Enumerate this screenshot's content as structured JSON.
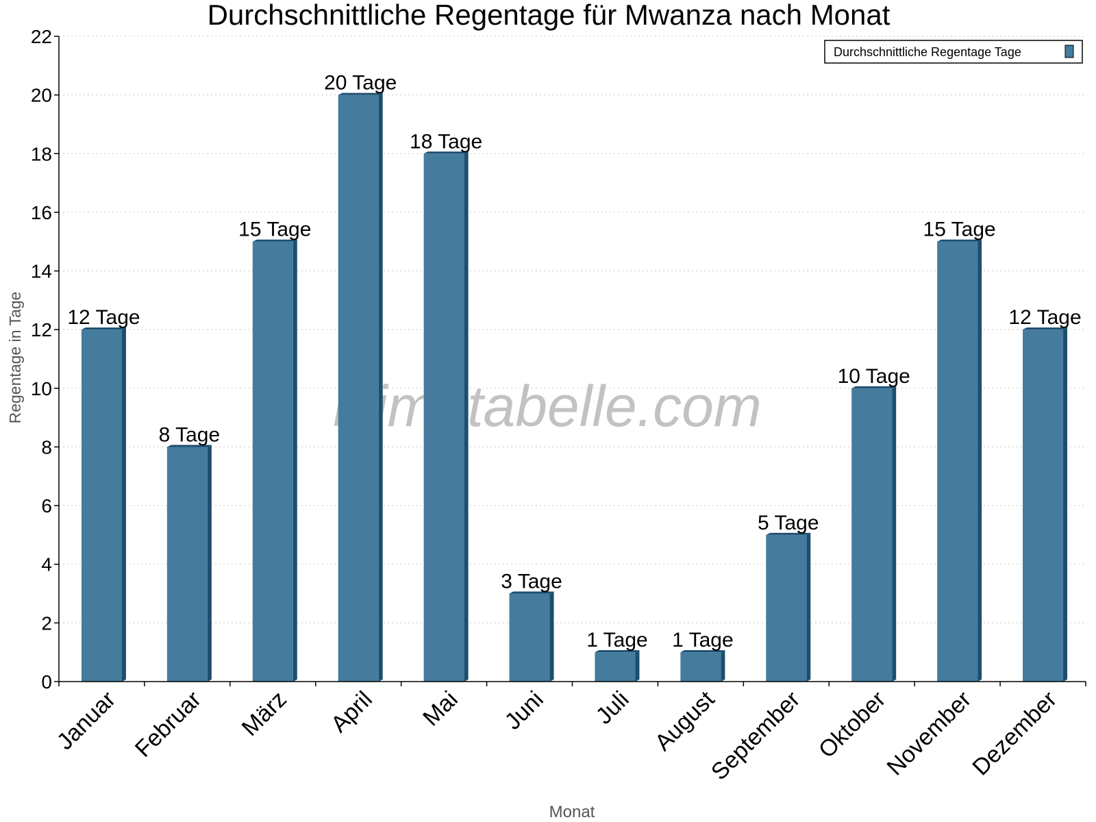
{
  "chart_data": {
    "type": "bar",
    "title": "Durchschnittliche Regentage für Mwanza nach Monat",
    "xlabel": "Monat",
    "ylabel": "Regentage in Tage",
    "categories": [
      "Januar",
      "Februar",
      "März",
      "April",
      "Mai",
      "Juni",
      "Juli",
      "August",
      "September",
      "Oktober",
      "November",
      "Dezember"
    ],
    "series": [
      {
        "name": "Durchschnittliche Regentage Tage",
        "values": [
          12,
          8,
          15,
          20,
          18,
          3,
          1,
          1,
          5,
          10,
          15,
          12
        ]
      }
    ],
    "data_labels": [
      "12 Tage",
      "8 Tage",
      "15 Tage",
      "20 Tage",
      "18 Tage",
      "3 Tage",
      "1 Tage",
      "1 Tage",
      "5 Tage",
      "10 Tage",
      "15 Tage",
      "12 Tage"
    ],
    "ylim": [
      0,
      22
    ],
    "yticks": [
      0,
      2,
      4,
      6,
      8,
      10,
      12,
      14,
      16,
      18,
      20,
      22
    ],
    "grid": true,
    "legend_position": "top-right",
    "watermark": "klimatabelle.com",
    "colors": {
      "bar": "#457b9d",
      "bar_side": "#1d4e6e",
      "grid": "#c8c8c8"
    }
  }
}
